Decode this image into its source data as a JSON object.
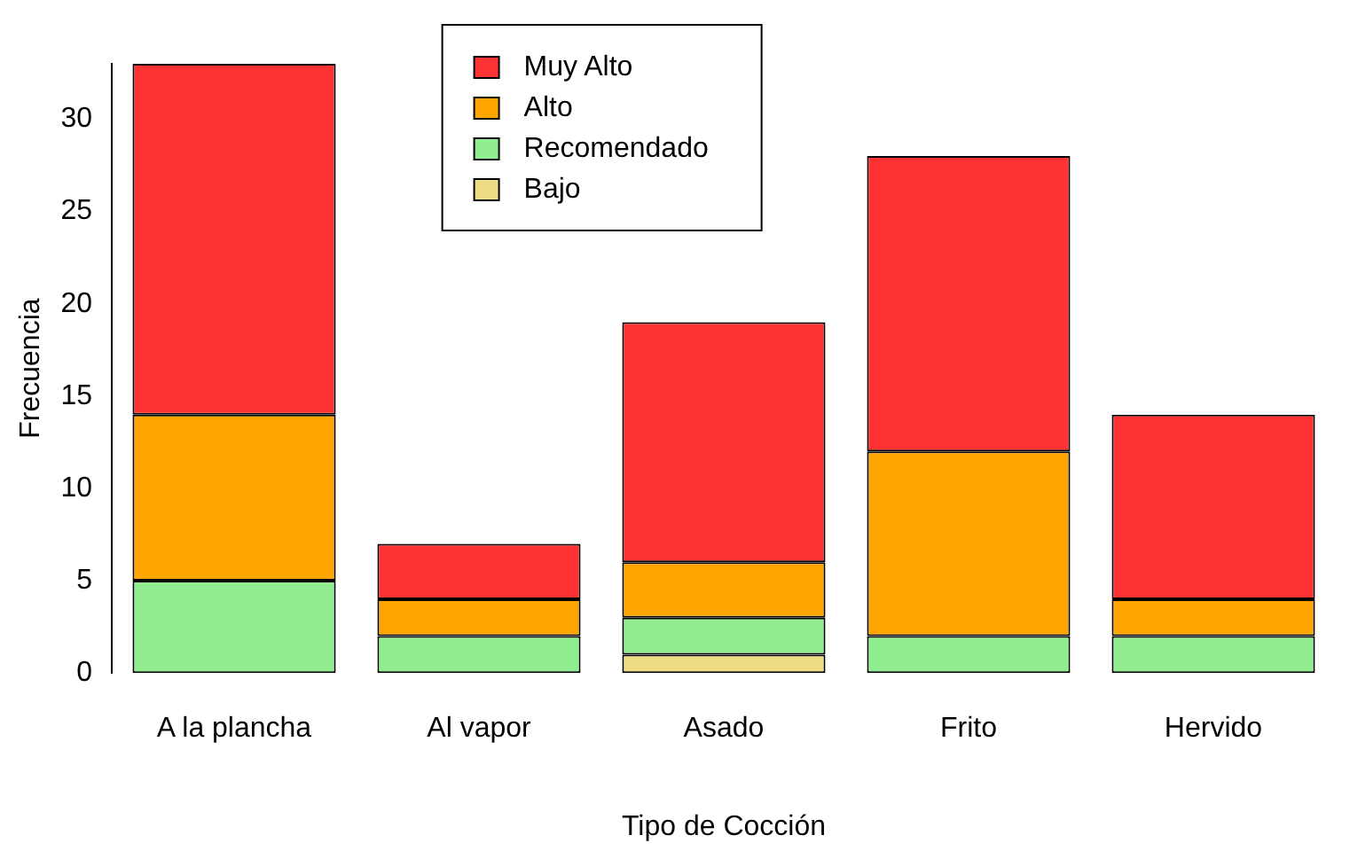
{
  "chart_data": {
    "type": "bar",
    "stacked": true,
    "xlabel": "Tipo de Cocción",
    "ylabel": "Frecuencia",
    "categories": [
      "A la plancha",
      "Al vapor",
      "Asado",
      "Frito",
      "Hervido"
    ],
    "series": [
      {
        "name": "Bajo",
        "color": "#eedd82",
        "values": [
          0,
          0,
          1,
          0,
          0
        ]
      },
      {
        "name": "Recomendado",
        "color": "#90ee90",
        "values": [
          5,
          2,
          2,
          2,
          2
        ]
      },
      {
        "name": "Alto",
        "color": "#ffa500",
        "values": [
          9,
          2,
          3,
          10,
          2
        ]
      },
      {
        "name": "Muy Alto",
        "color": "#ff3333",
        "values": [
          19,
          3,
          13,
          16,
          10
        ]
      }
    ],
    "ylim": [
      0,
      33
    ],
    "yticks": [
      0,
      5,
      10,
      15,
      20,
      25,
      30
    ],
    "grid": false,
    "legend": "top"
  }
}
